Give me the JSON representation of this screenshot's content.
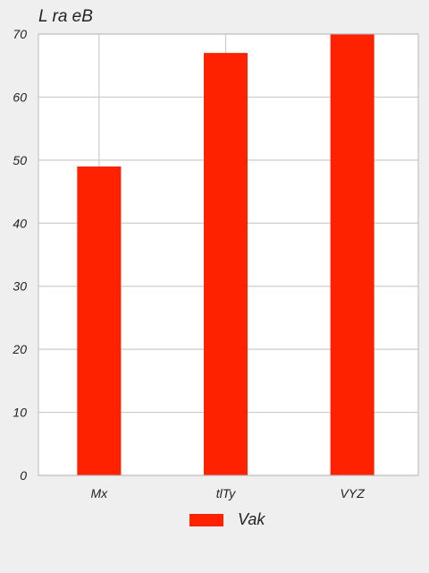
{
  "chart_data": {
    "type": "bar",
    "title": "L ra eB",
    "xlabel": "",
    "ylabel": "",
    "categories": [
      "Mx",
      "tlTy",
      "VYZ"
    ],
    "series": [
      {
        "name": "Vak",
        "values": [
          49,
          67,
          70
        ],
        "color": "#ff2200"
      }
    ],
    "ylim": [
      0,
      70
    ],
    "yticks": [
      0,
      10,
      20,
      30,
      40,
      50,
      60,
      70
    ],
    "grid": true,
    "legend_position": "bottom-center"
  },
  "colors": {
    "background": "#efefef",
    "plot_background": "#ffffff",
    "grid": "#cccccc",
    "bar": "#ff2200"
  }
}
